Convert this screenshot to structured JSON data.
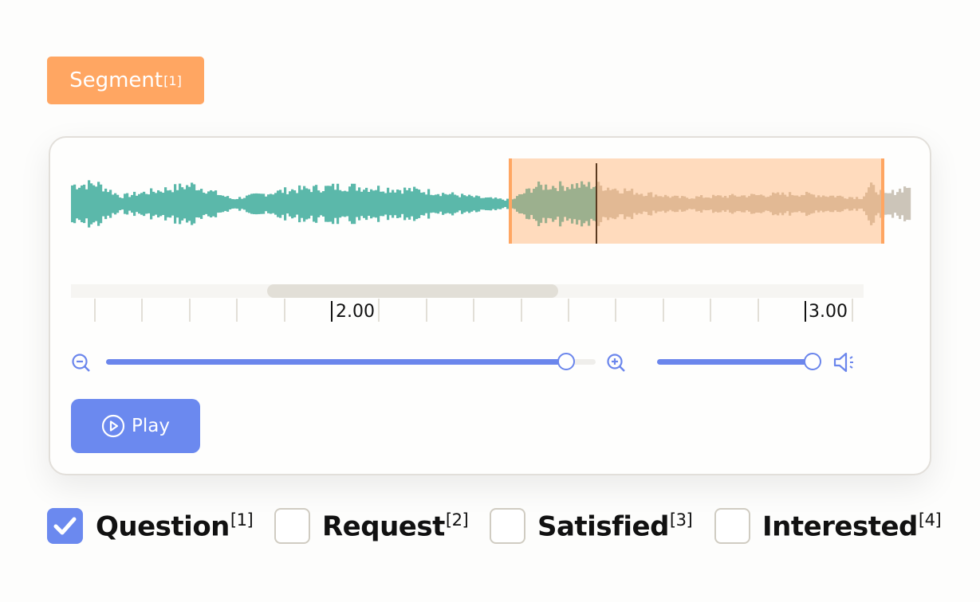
{
  "segment_button": {
    "label": "Segment",
    "shortcut": "[1]",
    "color": "#ffa662"
  },
  "waveform": {
    "played_color": "#5bb8aa",
    "region_played_color": "#9cb08e",
    "region_unplayed_color": "#e2b994",
    "unplayed_color": "#ccc5b9",
    "region_fill": "#ffdbbd",
    "region_edge": "#ffa662"
  },
  "timeline": {
    "labels": [
      "2.00",
      "3.00"
    ]
  },
  "zoom_slider": {
    "value_percent": 94
  },
  "volume_slider": {
    "value_percent": 100
  },
  "play_button": {
    "label": "Play",
    "icon": "play-circle-icon"
  },
  "labels": [
    {
      "text": "Question",
      "shortcut": "[1]",
      "checked": true
    },
    {
      "text": "Request",
      "shortcut": "[2]",
      "checked": false
    },
    {
      "text": "Satisfied",
      "shortcut": "[3]",
      "checked": false
    },
    {
      "text": "Interested",
      "shortcut": "[4]",
      "checked": false
    }
  ],
  "accent_color": "#6b89ef"
}
